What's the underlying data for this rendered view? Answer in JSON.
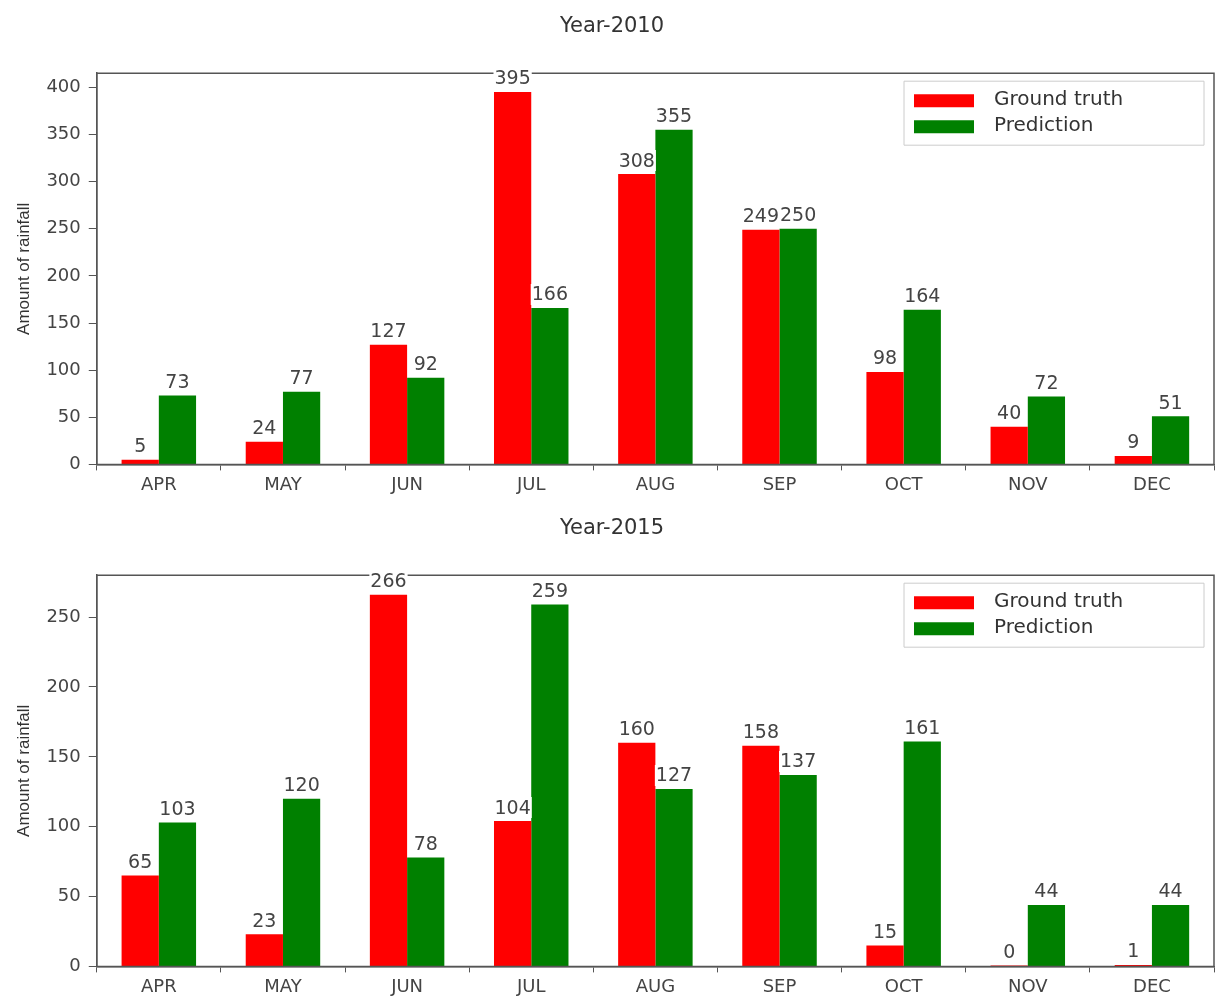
{
  "chart_data": [
    {
      "type": "bar",
      "title": "Year-2010",
      "ylabel": "Amount of rainfall",
      "categories": [
        "APR",
        "MAY",
        "JUN",
        "JUL",
        "AUG",
        "SEP",
        "OCT",
        "NOV",
        "DEC"
      ],
      "series": [
        {
          "name": "Ground truth",
          "color": "#ff0000",
          "values": [
            5,
            24,
            127,
            395,
            308,
            249,
            98,
            40,
            9
          ]
        },
        {
          "name": "Prediction",
          "color": "#008000",
          "values": [
            73,
            77,
            92,
            166,
            355,
            250,
            164,
            72,
            51
          ]
        }
      ],
      "ylim": [
        0,
        415
      ],
      "yticks": [
        0,
        50,
        100,
        150,
        200,
        250,
        300,
        350,
        400
      ],
      "grid": false,
      "legend": "top right",
      "data_labels": true
    },
    {
      "type": "bar",
      "title": "Year-2015",
      "ylabel": "Amount of rainfall",
      "categories": [
        "APR",
        "MAY",
        "JUN",
        "JUL",
        "AUG",
        "SEP",
        "OCT",
        "NOV",
        "DEC"
      ],
      "series": [
        {
          "name": "Ground truth",
          "color": "#ff0000",
          "values": [
            65,
            23,
            266,
            104,
            160,
            158,
            15,
            0,
            1
          ]
        },
        {
          "name": "Prediction",
          "color": "#008000",
          "values": [
            103,
            120,
            78,
            259,
            127,
            137,
            161,
            44,
            44
          ]
        }
      ],
      "ylim": [
        0,
        280
      ],
      "yticks": [
        0,
        50,
        100,
        150,
        200,
        250
      ],
      "grid": false,
      "legend": "top right",
      "data_labels": true
    }
  ]
}
